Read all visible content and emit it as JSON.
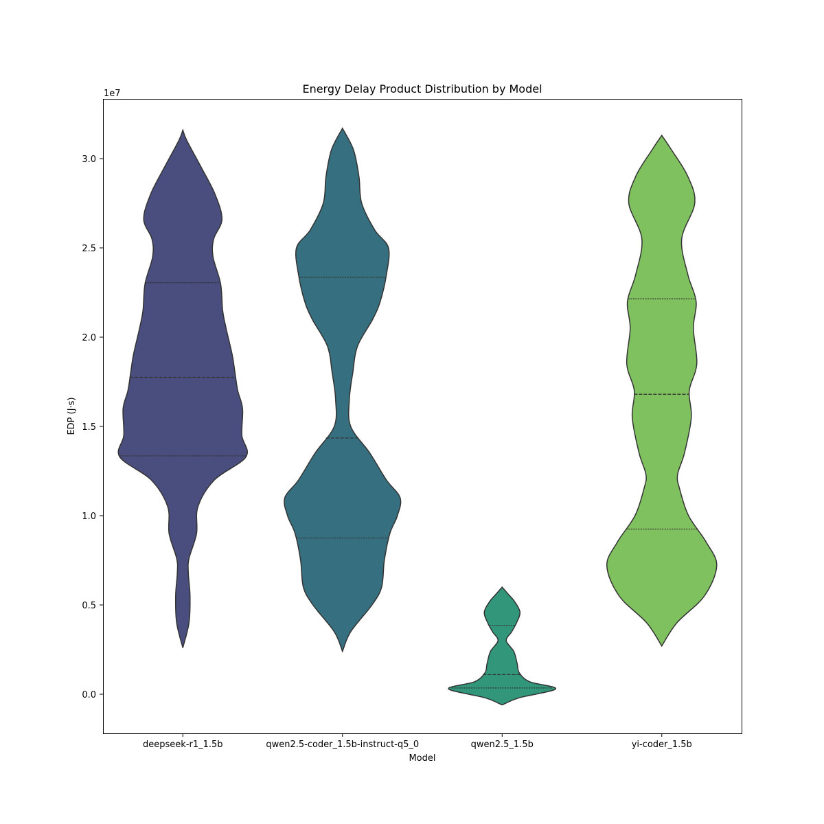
{
  "chart_data": {
    "type": "violin",
    "title": "Energy Delay Product Distribution by Model",
    "xlabel": "Model",
    "ylabel": "EDP (J·s)",
    "y_offset_label": "1e7",
    "ylim": [
      -0.22,
      3.33
    ],
    "yticks": [
      0.0,
      0.5,
      1.0,
      1.5,
      2.0,
      2.5,
      3.0
    ],
    "ytick_labels": [
      "0.0",
      "0.5",
      "1.0",
      "1.5",
      "2.0",
      "2.5",
      "3.0"
    ],
    "grid": false,
    "categories": [
      "deepseek-r1_1.5b",
      "qwen2.5-coder_1.5b-instruct-q5_0",
      "qwen2.5_1.5b",
      "yi-coder_1.5b"
    ],
    "series": [
      {
        "category": "deepseek-r1_1.5b",
        "color": "#4a4e7e",
        "min": 0.26,
        "max": 3.16,
        "quartiles": [
          1.335,
          1.775,
          2.305
        ],
        "density": [
          [
            0.26,
            0.0
          ],
          [
            0.4,
            0.09
          ],
          [
            0.55,
            0.105
          ],
          [
            0.68,
            0.08
          ],
          [
            0.76,
            0.09
          ],
          [
            0.9,
            0.2
          ],
          [
            1.05,
            0.22
          ],
          [
            1.2,
            0.46
          ],
          [
            1.33,
            0.92
          ],
          [
            1.45,
            0.86
          ],
          [
            1.6,
            0.87
          ],
          [
            1.7,
            0.8
          ],
          [
            1.8,
            0.76
          ],
          [
            1.9,
            0.72
          ],
          [
            2.05,
            0.63
          ],
          [
            2.15,
            0.58
          ],
          [
            2.3,
            0.55
          ],
          [
            2.45,
            0.44
          ],
          [
            2.55,
            0.45
          ],
          [
            2.66,
            0.57
          ],
          [
            2.8,
            0.47
          ],
          [
            2.95,
            0.27
          ],
          [
            3.1,
            0.06
          ],
          [
            3.16,
            0.0
          ]
        ]
      },
      {
        "category": "qwen2.5-coder_1.5b-instruct-q5_0",
        "color": "#366f7f",
        "min": 0.24,
        "max": 3.17,
        "quartiles": [
          0.875,
          1.435,
          2.335
        ],
        "density": [
          [
            0.24,
            0.0
          ],
          [
            0.35,
            0.12
          ],
          [
            0.5,
            0.43
          ],
          [
            0.6,
            0.57
          ],
          [
            0.75,
            0.61
          ],
          [
            0.9,
            0.69
          ],
          [
            1.0,
            0.8
          ],
          [
            1.1,
            0.84
          ],
          [
            1.2,
            0.64
          ],
          [
            1.35,
            0.4
          ],
          [
            1.5,
            0.12
          ],
          [
            1.65,
            0.1
          ],
          [
            1.8,
            0.15
          ],
          [
            1.95,
            0.22
          ],
          [
            2.1,
            0.44
          ],
          [
            2.2,
            0.55
          ],
          [
            2.35,
            0.64
          ],
          [
            2.5,
            0.67
          ],
          [
            2.6,
            0.47
          ],
          [
            2.75,
            0.28
          ],
          [
            2.9,
            0.24
          ],
          [
            3.05,
            0.16
          ],
          [
            3.17,
            0.0
          ]
        ]
      },
      {
        "category": "qwen2.5_1.5b",
        "color": "#31967a",
        "min": -0.06,
        "max": 0.6,
        "quartiles": [
          0.035,
          0.11,
          0.385
        ],
        "density": [
          [
            -0.06,
            0.0
          ],
          [
            -0.02,
            0.25
          ],
          [
            0.03,
            0.78
          ],
          [
            0.07,
            0.4
          ],
          [
            0.12,
            0.25
          ],
          [
            0.17,
            0.22
          ],
          [
            0.24,
            0.17
          ],
          [
            0.3,
            0.06
          ],
          [
            0.35,
            0.14
          ],
          [
            0.4,
            0.21
          ],
          [
            0.46,
            0.26
          ],
          [
            0.52,
            0.18
          ],
          [
            0.56,
            0.09
          ],
          [
            0.6,
            0.0
          ]
        ]
      },
      {
        "category": "yi-coder_1.5b",
        "color": "#80c15f",
        "min": 0.27,
        "max": 3.13,
        "quartiles": [
          0.925,
          1.68,
          2.215
        ],
        "density": [
          [
            0.27,
            0.0
          ],
          [
            0.4,
            0.22
          ],
          [
            0.55,
            0.62
          ],
          [
            0.72,
            0.8
          ],
          [
            0.85,
            0.65
          ],
          [
            1.0,
            0.39
          ],
          [
            1.15,
            0.26
          ],
          [
            1.23,
            0.23
          ],
          [
            1.35,
            0.33
          ],
          [
            1.55,
            0.43
          ],
          [
            1.7,
            0.4
          ],
          [
            1.85,
            0.51
          ],
          [
            2.05,
            0.46
          ],
          [
            2.2,
            0.5
          ],
          [
            2.35,
            0.38
          ],
          [
            2.55,
            0.29
          ],
          [
            2.75,
            0.48
          ],
          [
            2.9,
            0.38
          ],
          [
            3.05,
            0.14
          ],
          [
            3.13,
            0.0
          ]
        ]
      }
    ]
  }
}
